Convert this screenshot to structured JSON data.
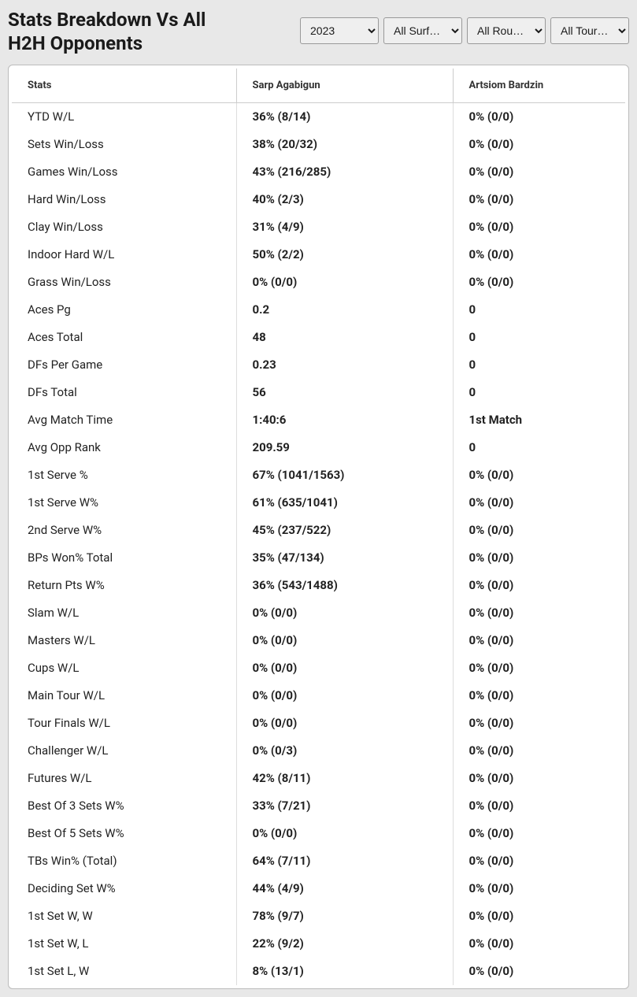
{
  "title": "Stats Breakdown Vs All H2H Opponents",
  "filters": {
    "year": "2023",
    "surface": "All Surfa…",
    "round": "All Rounds",
    "tour": "All Tour…"
  },
  "table": {
    "headers": {
      "stats": "Stats",
      "player1": "Sarp Agabigun",
      "player2": "Artsiom Bardzin"
    },
    "rows": [
      {
        "stat": "YTD W/L",
        "p1": "36% (8/14)",
        "p2": "0% (0/0)"
      },
      {
        "stat": "Sets Win/Loss",
        "p1": "38% (20/32)",
        "p2": "0% (0/0)"
      },
      {
        "stat": "Games Win/Loss",
        "p1": "43% (216/285)",
        "p2": "0% (0/0)"
      },
      {
        "stat": "Hard Win/Loss",
        "p1": "40% (2/3)",
        "p2": "0% (0/0)"
      },
      {
        "stat": "Clay Win/Loss",
        "p1": "31% (4/9)",
        "p2": "0% (0/0)"
      },
      {
        "stat": "Indoor Hard W/L",
        "p1": "50% (2/2)",
        "p2": "0% (0/0)"
      },
      {
        "stat": "Grass Win/Loss",
        "p1": "0% (0/0)",
        "p2": "0% (0/0)"
      },
      {
        "stat": "Aces Pg",
        "p1": "0.2",
        "p2": "0"
      },
      {
        "stat": "Aces Total",
        "p1": "48",
        "p2": "0"
      },
      {
        "stat": "DFs Per Game",
        "p1": "0.23",
        "p2": "0"
      },
      {
        "stat": "DFs Total",
        "p1": "56",
        "p2": "0"
      },
      {
        "stat": "Avg Match Time",
        "p1": "1:40:6",
        "p2": "1st Match"
      },
      {
        "stat": "Avg Opp Rank",
        "p1": "209.59",
        "p2": "0"
      },
      {
        "stat": "1st Serve %",
        "p1": "67% (1041/1563)",
        "p2": "0% (0/0)"
      },
      {
        "stat": "1st Serve W%",
        "p1": "61% (635/1041)",
        "p2": "0% (0/0)"
      },
      {
        "stat": "2nd Serve W%",
        "p1": "45% (237/522)",
        "p2": "0% (0/0)"
      },
      {
        "stat": "BPs Won% Total",
        "p1": "35% (47/134)",
        "p2": "0% (0/0)"
      },
      {
        "stat": "Return Pts W%",
        "p1": "36% (543/1488)",
        "p2": "0% (0/0)"
      },
      {
        "stat": "Slam W/L",
        "p1": "0% (0/0)",
        "p2": "0% (0/0)"
      },
      {
        "stat": "Masters W/L",
        "p1": "0% (0/0)",
        "p2": "0% (0/0)"
      },
      {
        "stat": "Cups W/L",
        "p1": "0% (0/0)",
        "p2": "0% (0/0)"
      },
      {
        "stat": "Main Tour W/L",
        "p1": "0% (0/0)",
        "p2": "0% (0/0)"
      },
      {
        "stat": "Tour Finals W/L",
        "p1": "0% (0/0)",
        "p2": "0% (0/0)"
      },
      {
        "stat": "Challenger W/L",
        "p1": "0% (0/3)",
        "p2": "0% (0/0)"
      },
      {
        "stat": "Futures W/L",
        "p1": "42% (8/11)",
        "p2": "0% (0/0)"
      },
      {
        "stat": "Best Of 3 Sets W%",
        "p1": "33% (7/21)",
        "p2": "0% (0/0)"
      },
      {
        "stat": "Best Of 5 Sets W%",
        "p1": "0% (0/0)",
        "p2": "0% (0/0)"
      },
      {
        "stat": "TBs Win% (Total)",
        "p1": "64% (7/11)",
        "p2": "0% (0/0)"
      },
      {
        "stat": "Deciding Set W%",
        "p1": "44% (4/9)",
        "p2": "0% (0/0)"
      },
      {
        "stat": "1st Set W, W",
        "p1": "78% (9/7)",
        "p2": "0% (0/0)"
      },
      {
        "stat": "1st Set W, L",
        "p1": "22% (9/2)",
        "p2": "0% (0/0)"
      },
      {
        "stat": "1st Set L, W",
        "p1": "8% (13/1)",
        "p2": "0% (0/0)"
      }
    ]
  }
}
